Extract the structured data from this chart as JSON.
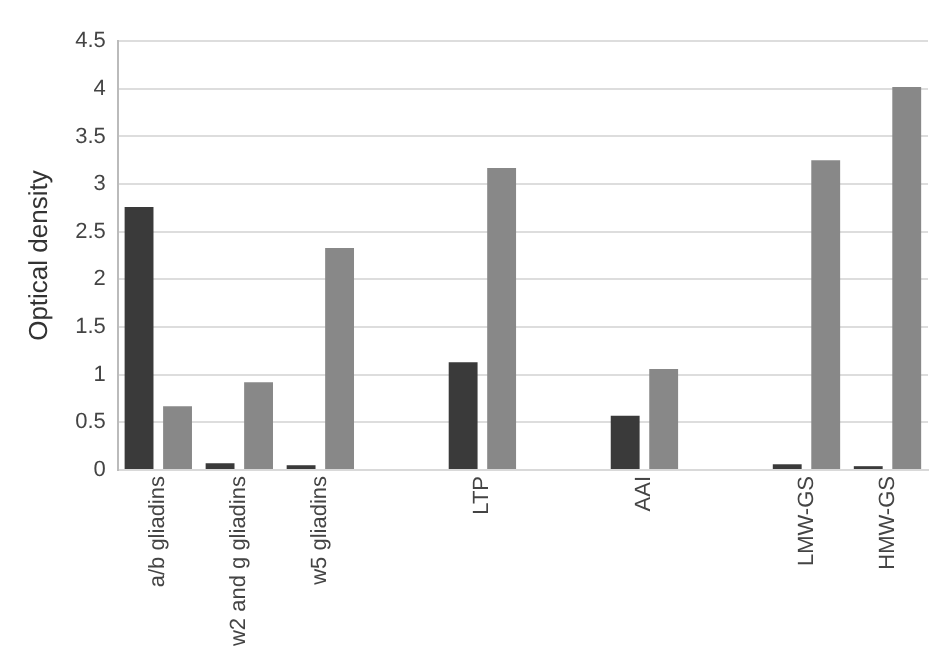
{
  "chart_data": {
    "type": "bar",
    "ylabel": "Optical density",
    "categories": [
      "a/b gliadins",
      "w2 and g gliadins",
      "w5 gliadins",
      null,
      "LTP",
      null,
      "AAI",
      null,
      "LMW-GS",
      "HMW-GS"
    ],
    "series": [
      {
        "color": "#3a3a3a",
        "values": [
          2.76,
          0.07,
          0.05,
          null,
          1.13,
          null,
          0.57,
          null,
          0.06,
          0.04
        ]
      },
      {
        "color": "#888888",
        "values": [
          0.67,
          0.92,
          2.33,
          null,
          3.17,
          null,
          1.06,
          null,
          3.25,
          4.02
        ]
      }
    ],
    "ylim": [
      0,
      4.5
    ],
    "yticks": [
      0,
      0.5,
      1,
      1.5,
      2,
      2.5,
      3,
      3.5,
      4,
      4.5
    ],
    "grid": "y",
    "legend": false
  }
}
